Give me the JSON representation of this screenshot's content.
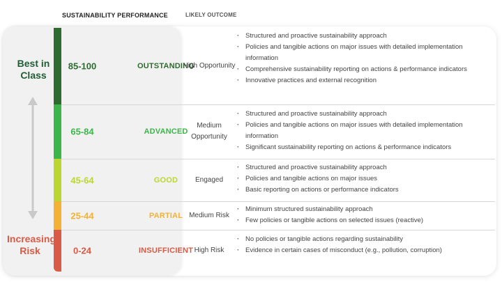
{
  "headers": {
    "performance": "SUSTAINABILITY PERFORMANCE",
    "outcome": "LIKELY OUTCOME"
  },
  "side_labels": {
    "top": "Best in Class",
    "bottom": "Increasing Risk"
  },
  "tiers": [
    {
      "score": "85-100",
      "level": "OUTSTANDING",
      "outcome": "High Opportunity",
      "color": "#2e6b2f",
      "bullets": [
        "Structured and proactive sustainability approach",
        "Policies and tangible actions on major issues with detailed implementation information",
        "Comprehensive sustainability reporting on actions & performance indicators",
        "Innovative practices and external recognition"
      ]
    },
    {
      "score": "65-84",
      "level": "ADVANCED",
      "outcome": "Medium Opportunity",
      "color": "#3cb54a",
      "bullets": [
        "Structured and proactive sustainability approach",
        "Policies and tangible actions on major issues with detailed implementation information",
        "Significant sustainability reporting on actions & performance indicators"
      ]
    },
    {
      "score": "45-64",
      "level": "GOOD",
      "outcome": "Engaged",
      "color": "#bcd631",
      "bullets": [
        "Structured and proactive sustainability approach",
        "Policies and tangible actions on major issues",
        "Basic reporting on actions or performance indicators"
      ]
    },
    {
      "score": "25-44",
      "level": "PARTIAL",
      "outcome": "Medium Risk",
      "color": "#f3b233",
      "bullets": [
        "Minimum structured sustainability approach",
        "Few policies or tangible actions on selected issues (reactive)"
      ]
    },
    {
      "score": "0-24",
      "level": "INSUFFICIENT",
      "outcome": "High Risk",
      "color": "#d95a45",
      "bullets": [
        "No policies or tangible actions regarding sustainability",
        "Evidence in certain cases of misconduct (e.g., pollution, corruption)"
      ]
    }
  ]
}
